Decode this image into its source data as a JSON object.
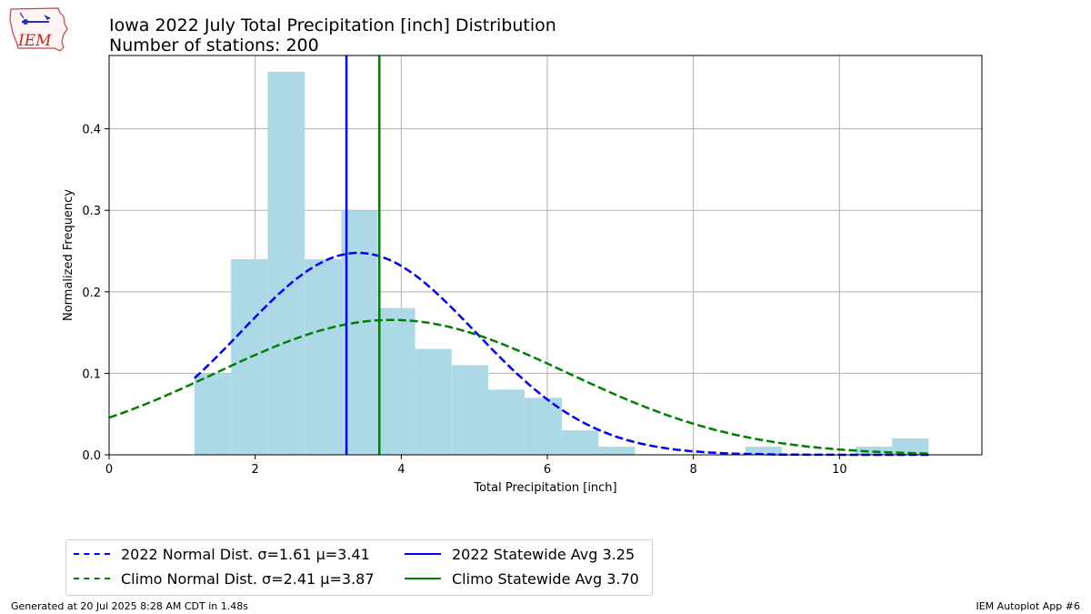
{
  "title": "Iowa 2022 July Total Precipitation [inch] Distribution",
  "subtitle": "Number of stations: 200",
  "logo_text": "IEM",
  "footer": {
    "generated": "Generated at 20 Jul 2025 8:28 AM CDT in 1.48s",
    "app": "IEM Autoplot App #6"
  },
  "legend": {
    "items": [
      {
        "label": "2022 Normal Dist. σ=1.61 μ=3.41",
        "color": "#0000ff",
        "dash": true
      },
      {
        "label": "Climo Normal Dist. σ=2.41 μ=3.87",
        "color": "#008000",
        "dash": true
      },
      {
        "label": "2022 Statewide Avg 3.25",
        "color": "#0000ff",
        "dash": false
      },
      {
        "label": "Climo Statewide Avg 3.70",
        "color": "#008000",
        "dash": false
      }
    ]
  },
  "chart_data": {
    "type": "bar",
    "xlabel": "Total Precipitation [inch]",
    "ylabel": "Normalized Frequency",
    "xlim": [
      0,
      11.95
    ],
    "ylim": [
      0,
      0.49
    ],
    "xticks": [
      0,
      2,
      4,
      6,
      8,
      10
    ],
    "yticks": [
      0.0,
      0.1,
      0.2,
      0.3,
      0.4
    ],
    "grid": true,
    "histogram": {
      "color": "#add8e6",
      "bins": [
        {
          "x0": 1.17,
          "x1": 1.67,
          "y": 0.1
        },
        {
          "x0": 1.67,
          "x1": 2.17,
          "y": 0.24
        },
        {
          "x0": 2.17,
          "x1": 2.68,
          "y": 0.47
        },
        {
          "x0": 2.68,
          "x1": 3.18,
          "y": 0.24
        },
        {
          "x0": 3.18,
          "x1": 3.68,
          "y": 0.3
        },
        {
          "x0": 3.68,
          "x1": 4.19,
          "y": 0.18
        },
        {
          "x0": 4.19,
          "x1": 4.69,
          "y": 0.13
        },
        {
          "x0": 4.69,
          "x1": 5.19,
          "y": 0.11
        },
        {
          "x0": 5.19,
          "x1": 5.69,
          "y": 0.08
        },
        {
          "x0": 5.69,
          "x1": 6.2,
          "y": 0.07
        },
        {
          "x0": 6.2,
          "x1": 6.7,
          "y": 0.03
        },
        {
          "x0": 6.7,
          "x1": 7.2,
          "y": 0.01
        },
        {
          "x0": 8.71,
          "x1": 9.21,
          "y": 0.01
        },
        {
          "x0": 10.22,
          "x1": 10.72,
          "y": 0.01
        },
        {
          "x0": 10.72,
          "x1": 11.22,
          "y": 0.02
        }
      ]
    },
    "normal_curves": [
      {
        "name": "2022 Normal Dist. σ=1.61 μ=3.41",
        "mu": 3.41,
        "sigma": 1.61,
        "x_range": [
          1.17,
          11.22
        ],
        "color": "#0000ff"
      },
      {
        "name": "Climo Normal Dist. σ=2.41 μ=3.87",
        "mu": 3.87,
        "sigma": 2.41,
        "x_range": [
          0,
          11.22
        ],
        "color": "#008000"
      }
    ],
    "vlines": [
      {
        "name": "2022 Statewide Avg 3.25",
        "x": 3.25,
        "color": "#0000ff"
      },
      {
        "name": "Climo Statewide Avg 3.70",
        "x": 3.7,
        "color": "#008000"
      }
    ]
  }
}
